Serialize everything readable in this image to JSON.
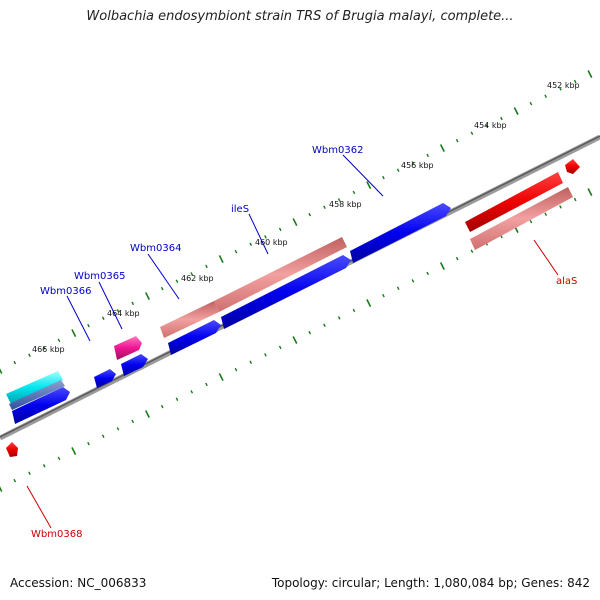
{
  "title": "Wolbachia endosymbiont strain TRS of Brugia malayi, complete...",
  "footer": {
    "accession": "Accession: NC_006833",
    "summary": "Topology: circular; Length: 1,080,084 bp; Genes: 842"
  },
  "colors": {
    "backbone": "#808080",
    "forward_gene": "#0000ee",
    "forward_rna": "#e08080",
    "reverse_gene": "#ee0000",
    "reverse_rna": "#e08080",
    "other_cyan": "#00e5ee",
    "other_pink": "#ee1493",
    "tick_marks": "#1a7a1a",
    "forward_label": "#0000cc",
    "reverse_label": "#cc0000"
  },
  "axis_labels": [
    "452 kbp",
    "454 kbp",
    "456 kbp",
    "458 kbp",
    "460 kbp",
    "462 kbp",
    "464 kbp",
    "466 kbp"
  ],
  "gene_labels": {
    "forward": [
      "Wbm0362",
      "ileS",
      "Wbm0364",
      "Wbm0365",
      "Wbm0366"
    ],
    "reverse": [
      "alaS",
      "Wbm0368"
    ]
  }
}
